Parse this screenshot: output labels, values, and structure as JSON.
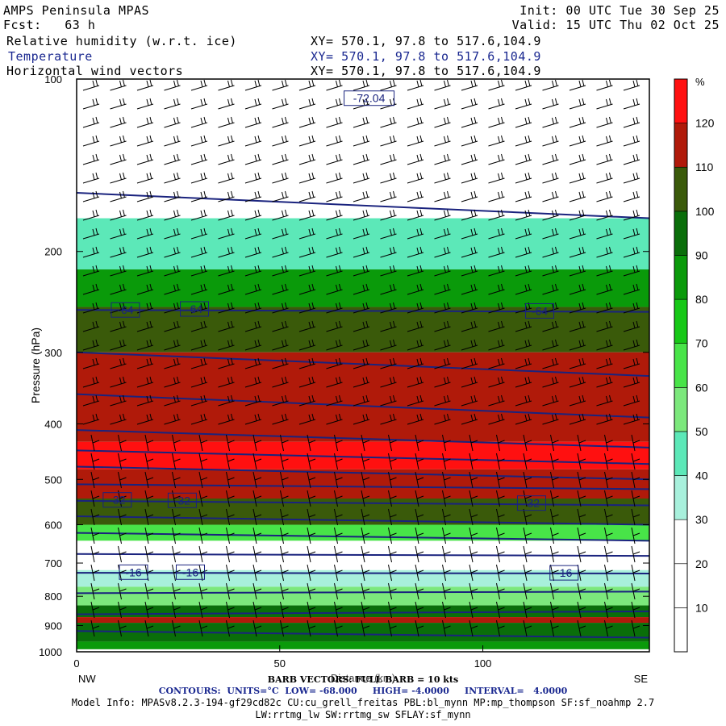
{
  "header": {
    "title": "AMPS Peninsula MPAS",
    "forecast": "Fcst:   63 h",
    "init": "Init: 00 UTC Tue 30 Sep 25",
    "valid": "Valid: 15 UTC Thu 02 Oct 25",
    "fields": [
      {
        "name": "Relative humidity (w.r.t. ice)",
        "xy": "XY= 570.1, 97.8 to 517.6,104.9"
      },
      {
        "name": "Temperature",
        "xy": "XY= 570.1, 97.8 to 517.6,104.9"
      },
      {
        "name": "Horizontal wind vectors",
        "xy": "XY= 570.1, 97.8 to 517.6,104.9"
      }
    ]
  },
  "footer": {
    "barb_note": "BARB VECTORS: FULL BARB = 10 kts",
    "contours": "CONTOURS:  UNITS=°C  LOW= -68.000     HIGH= -4.0000     INTERVAL=   4.0000",
    "model_info": "Model Info: MPASv8.2.3-194-gf29cd82c CU:cu_grell_freitas PBL:bl_mynn MP:mp_thompson SF:sf_noahmp 2.7",
    "model_info2": "LW:rrtmg_lw SW:rrtmg_sw SFLAY:sf_mynn"
  },
  "chart_data": {
    "type": "heatmap",
    "ylabel": "Pressure (hPa)",
    "xlabel": "Distance (km)",
    "x_ticks": [
      0,
      50,
      100
    ],
    "y_ticks": [
      100,
      200,
      300,
      400,
      500,
      600,
      700,
      800,
      900,
      1000
    ],
    "xlim": [
      0,
      141
    ],
    "ylim": [
      1000,
      100
    ],
    "y_scale": "log",
    "endpoint_labels": {
      "left": "NW",
      "right": "SE"
    },
    "colorbar": {
      "unit": "%",
      "levels": [
        10,
        20,
        30,
        40,
        50,
        60,
        70,
        80,
        90,
        100,
        110,
        120
      ],
      "colors": [
        "#ffffff",
        "#ffffff",
        "#ffffff",
        "#a8f0dc",
        "#5ce8b8",
        "#7ce87c",
        "#48e448",
        "#16c816",
        "#0a9a0a",
        "#0a6e0a",
        "#3a5a0a",
        "#b01a0a",
        "#ff1010"
      ]
    },
    "rh_layers": [
      {
        "p_top": 100,
        "p_bottom": 175,
        "rh": 5
      },
      {
        "p_top": 175,
        "p_bottom": 215,
        "rh": 45
      },
      {
        "p_top": 215,
        "p_bottom": 250,
        "rh": 85
      },
      {
        "p_top": 250,
        "p_bottom": 300,
        "rh": 105
      },
      {
        "p_top": 300,
        "p_bottom": 430,
        "rh": 115
      },
      {
        "p_top": 430,
        "p_bottom": 480,
        "rh": 122
      },
      {
        "p_top": 480,
        "p_bottom": 540,
        "rh": 115
      },
      {
        "p_top": 540,
        "p_bottom": 600,
        "rh": 105
      },
      {
        "p_top": 600,
        "p_bottom": 640,
        "rh": 65
      },
      {
        "p_top": 640,
        "p_bottom": 720,
        "rh": 15
      },
      {
        "p_top": 720,
        "p_bottom": 770,
        "rh": 35
      },
      {
        "p_top": 770,
        "p_bottom": 830,
        "rh": 55
      },
      {
        "p_top": 830,
        "p_bottom": 870,
        "rh": 95
      },
      {
        "p_top": 870,
        "p_bottom": 890,
        "rh": 118
      },
      {
        "p_top": 890,
        "p_bottom": 960,
        "rh": 95
      },
      {
        "p_top": 960,
        "p_bottom": 990,
        "rh": 80
      }
    ],
    "temperature_contours": [
      {
        "label": "-72.04",
        "p_left": 158,
        "p_right": 175
      },
      {
        "label": "-64",
        "p_left": 253,
        "p_right": 255
      },
      {
        "p_left": 300,
        "p_right": 330
      },
      {
        "p_left": 355,
        "p_right": 390
      },
      {
        "p_left": 410,
        "p_right": 440
      },
      {
        "p_left": 445,
        "p_right": 470
      },
      {
        "p_left": 475,
        "p_right": 500
      },
      {
        "p_left": 510,
        "p_right": 520
      },
      {
        "label": "-32",
        "p_left": 545,
        "p_right": 555
      },
      {
        "p_left": 580,
        "p_right": 600
      },
      {
        "p_left": 620,
        "p_right": 640
      },
      {
        "p_left": 675,
        "p_right": 680
      },
      {
        "label": "-16",
        "p_left": 728,
        "p_right": 730
      },
      {
        "p_left": 790,
        "p_right": 785
      },
      {
        "p_left": 860,
        "p_right": 850
      },
      {
        "p_left": 920,
        "p_right": 945
      }
    ],
    "contour_labels": [
      {
        "text": "-72.04",
        "x": 72,
        "p": 108
      },
      {
        "text": "-64",
        "x": 12,
        "p": 253
      },
      {
        "text": "-64",
        "x": 29,
        "p": 252
      },
      {
        "text": "-64",
        "x": 114,
        "p": 254
      },
      {
        "text": "-32",
        "x": 10,
        "p": 543
      },
      {
        "text": "-32",
        "x": 26,
        "p": 544
      },
      {
        "text": "-32",
        "x": 112,
        "p": 550
      },
      {
        "text": "-16",
        "x": 14,
        "p": 726
      },
      {
        "text": "-16",
        "x": 28,
        "p": 726
      },
      {
        "text": "-16",
        "x": 120,
        "p": 728
      }
    ]
  }
}
